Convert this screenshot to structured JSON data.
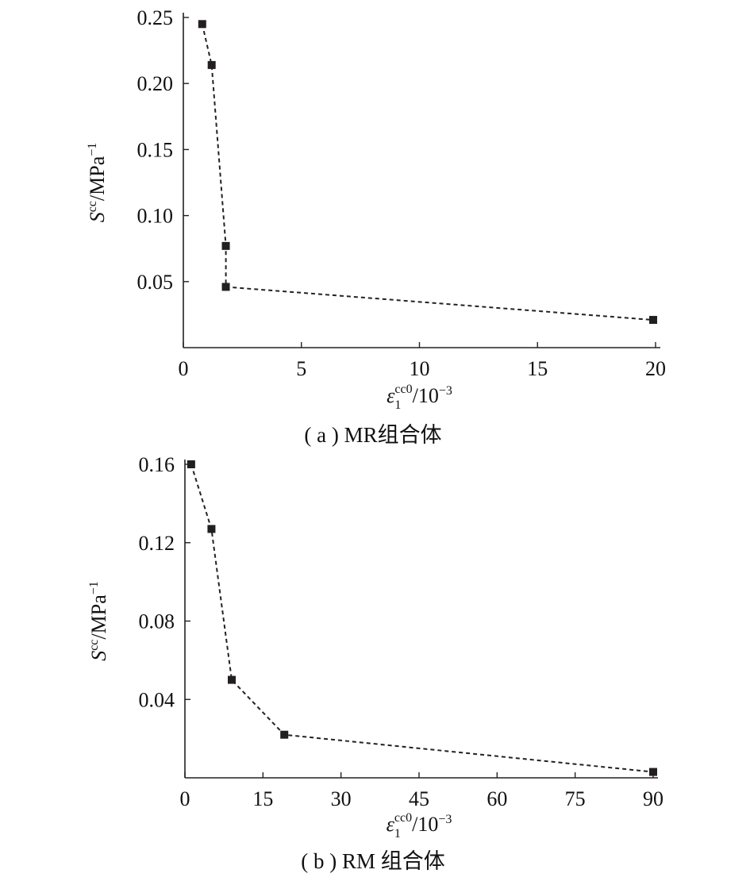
{
  "chart_data": [
    {
      "type": "line",
      "caption": "( a ) MR组合体",
      "ylabel": {
        "base": "S",
        "sup": "cc",
        "rest": "/MPa",
        "rest_sup": "−1"
      },
      "xlabel": {
        "base": "ε",
        "sub": "1",
        "sup": "cc0",
        "rest": "/10",
        "rest_sup": "−3"
      },
      "xlim": [
        0,
        20
      ],
      "ylim": [
        0,
        0.25
      ],
      "xticks": [
        0,
        5,
        10,
        15,
        20
      ],
      "xtick_labels": [
        "0",
        "5",
        "10",
        "15",
        "20"
      ],
      "yticks": [
        0.05,
        0.1,
        0.15,
        0.2,
        0.25
      ],
      "ytick_labels": [
        "0.05",
        "0.10",
        "0.15",
        "0.20",
        "0.25"
      ],
      "grid": false,
      "line_style": "dashed",
      "marker": "square",
      "x": [
        0.8,
        1.2,
        1.8,
        1.8,
        19.9
      ],
      "y": [
        0.245,
        0.214,
        0.077,
        0.046,
        0.021
      ]
    },
    {
      "type": "line",
      "caption": "( b ) RM 组合体",
      "ylabel": {
        "base": "S",
        "sup": "cc",
        "rest": "/MPa",
        "rest_sup": "−1"
      },
      "xlabel": {
        "base": "ε",
        "sub": "1",
        "sup": "cc0",
        "rest": "/10",
        "rest_sup": "−3"
      },
      "xlim": [
        0,
        90
      ],
      "ylim": [
        0,
        0.16
      ],
      "xticks": [
        0,
        15,
        30,
        45,
        60,
        75,
        90
      ],
      "xtick_labels": [
        "0",
        "15",
        "30",
        "45",
        "60",
        "75",
        "90"
      ],
      "yticks": [
        0.04,
        0.08,
        0.12,
        0.16
      ],
      "ytick_labels": [
        "0.04",
        "0.08",
        "0.12",
        "0.16"
      ],
      "grid": false,
      "line_style": "dashed",
      "marker": "square",
      "x": [
        1.2,
        5.1,
        9.0,
        19.1,
        90.0
      ],
      "y": [
        0.16,
        0.127,
        0.05,
        0.022,
        0.003
      ]
    }
  ]
}
